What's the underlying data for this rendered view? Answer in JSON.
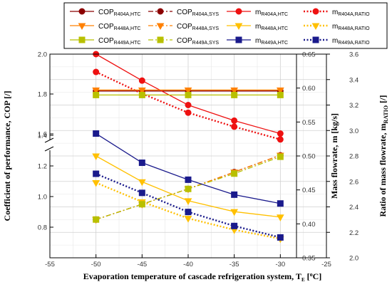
{
  "chart_data": {
    "type": "line",
    "x": [
      -50,
      -45,
      -40,
      -35,
      -30
    ],
    "xlim": [
      -55,
      -25
    ],
    "xticks": [
      "-55",
      "-50",
      "-45",
      "-40",
      "-35",
      "-30",
      "-25"
    ],
    "xlabel": {
      "main": "Evaporation temperature of cascade refrigeration system, T",
      "sub": "E",
      "unit": " [",
      "sup": "o",
      "end": "C]"
    },
    "ylabel_left": "Coefficient of performance, COP [/]",
    "ylabel_mid": "Mass flowrate, m [kg/s]",
    "ylabel_right": {
      "main": "Ratio of mass flowrate, m",
      "sub": "RATIO",
      "end": " [/]"
    },
    "ylim_left": [
      0.8,
      2.0
    ],
    "yticks_left_lower": [
      "0.8",
      "1.0",
      "1.2",
      "1.4"
    ],
    "yticks_left_upper": [
      "1.6",
      "1.8",
      "2.0"
    ],
    "ylim_mid": [
      0.35,
      0.65
    ],
    "yticks_mid": [
      "0.35",
      "0.40",
      "0.45",
      "0.50",
      "0.55",
      "0.60",
      "0.65"
    ],
    "ylim_right": [
      2.0,
      3.6
    ],
    "yticks_right": [
      "2.0",
      "2.2",
      "2.4",
      "2.6",
      "2.8",
      "3.0",
      "3.2",
      "3.4",
      "3.6"
    ],
    "grid": true,
    "legend_position": "top",
    "series": [
      {
        "name": "COP",
        "sub": "R404A,HTC",
        "axis": "left",
        "color": "#8B0000",
        "marker": "circle",
        "dash": "solid",
        "values": [
          1.815,
          1.815,
          1.815,
          1.815,
          1.815
        ]
      },
      {
        "name": "COP",
        "sub": "R404A,SYS",
        "axis": "left",
        "color": "#8B0000",
        "marker": "circle",
        "dash": "dashdot",
        "values": [
          0.85,
          0.95,
          1.05,
          1.16,
          1.27
        ]
      },
      {
        "name": "m",
        "sub": "R404A,HTC",
        "axis": "mid",
        "color": "#EE1111",
        "marker": "circle",
        "dash": "solid",
        "values": [
          0.65,
          0.611,
          0.575,
          0.552,
          0.533
        ]
      },
      {
        "name": "m",
        "sub": "R404A,RATIO",
        "axis": "right",
        "color": "#EE1111",
        "marker": "circle",
        "dash": "dot",
        "values": [
          3.46,
          3.29,
          3.14,
          3.03,
          2.93
        ]
      },
      {
        "name": "COP",
        "sub": "R448A,HTC",
        "axis": "left",
        "color": "#FF8000",
        "marker": "triangle-down",
        "dash": "solid",
        "values": [
          1.82,
          1.82,
          1.82,
          1.82,
          1.82
        ]
      },
      {
        "name": "COP",
        "sub": "R448A,SYS",
        "axis": "left",
        "color": "#FF8000",
        "marker": "triangle-down",
        "dash": "dashdot",
        "values": [
          0.85,
          0.95,
          1.05,
          1.16,
          1.27
        ]
      },
      {
        "name": "m",
        "sub": "R448A,HTC",
        "axis": "mid",
        "color": "#FFC000",
        "marker": "triangle-down",
        "dash": "solid",
        "values": [
          0.5,
          0.462,
          0.434,
          0.418,
          0.41
        ]
      },
      {
        "name": "m",
        "sub": "R448A,RATIO",
        "axis": "right",
        "color": "#FFC000",
        "marker": "triangle-down",
        "dash": "dot",
        "values": [
          2.59,
          2.44,
          2.31,
          2.22,
          2.15
        ]
      },
      {
        "name": "COP",
        "sub": "R449A,HTC",
        "axis": "left",
        "color": "#B8C000",
        "marker": "square",
        "dash": "solid",
        "values": [
          1.795,
          1.795,
          1.795,
          1.795,
          1.795
        ]
      },
      {
        "name": "COP",
        "sub": "R449A,SYS",
        "axis": "left",
        "color": "#B8C000",
        "marker": "square",
        "dash": "dashdot",
        "values": [
          0.85,
          0.95,
          1.05,
          1.15,
          1.26
        ]
      },
      {
        "name": "m",
        "sub": "R449A,HTC",
        "axis": "mid",
        "color": "#1A1A8C",
        "marker": "square",
        "dash": "solid",
        "values": [
          0.533,
          0.49,
          0.465,
          0.443,
          0.43
        ]
      },
      {
        "name": "m",
        "sub": "R449A,RATIO",
        "axis": "right",
        "color": "#1A1A8C",
        "marker": "square",
        "dash": "dot",
        "values": [
          2.66,
          2.51,
          2.36,
          2.25,
          2.16
        ]
      }
    ]
  }
}
